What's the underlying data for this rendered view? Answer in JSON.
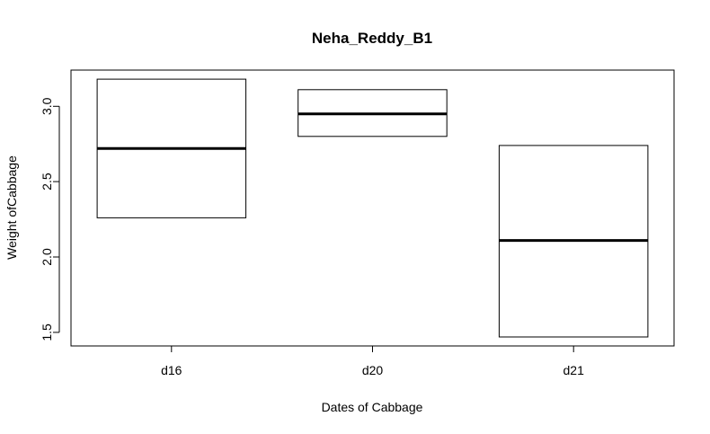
{
  "chart_data": {
    "type": "boxplot",
    "title": "Neha_Reddy_B1",
    "xlabel": "Dates of Cabbage",
    "ylabel": "Weight ofCabbage",
    "categories": [
      "d16",
      "d20",
      "d21"
    ],
    "boxes": [
      {
        "category": "d16",
        "q1": 2.26,
        "median": 2.72,
        "q3": 3.18
      },
      {
        "category": "d20",
        "q1": 2.8,
        "median": 2.95,
        "q3": 3.11
      },
      {
        "category": "d21",
        "q1": 1.47,
        "median": 2.11,
        "q3": 2.74
      }
    ],
    "yticks": [
      1.5,
      2.0,
      2.5,
      3.0
    ],
    "ytick_labels": [
      "1.5",
      "2.0",
      "2.5",
      "3.0"
    ],
    "ylim": [
      1.41,
      3.24
    ],
    "grid": false,
    "colors": {
      "box_fill": "#ffffff",
      "stroke": "#000000"
    }
  }
}
